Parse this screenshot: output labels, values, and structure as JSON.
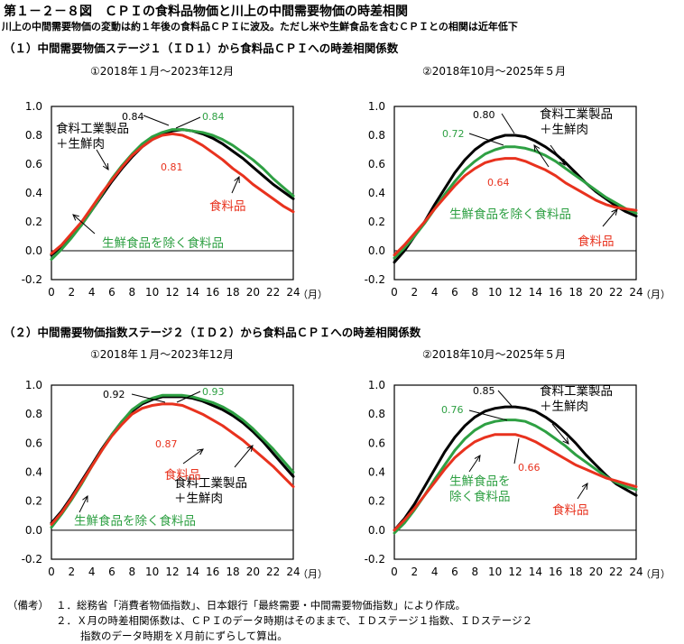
{
  "title": "第１－２－８図　ＣＰＩの食料品物価と川上の中間需要物価の時差相関",
  "subtitle": "川上の中間需要物価の変動は約１年後の食料品ＣＰＩに波及。ただし米や生鮮食品を含むＣＰＩとの相関は近年低下",
  "section1_title": "（１）中間需要物価ステージ１（ＩＤ１）から食料品ＣＰＩへの時差相関係数",
  "section2_title": "（２）中間需要物価指数ステージ２（ＩＤ２）から食料品ＣＰＩへの時差相関係数",
  "notes": {
    "label": "（備考）",
    "items": [
      "１．総務省「消費者物価指数」、日本銀行「最終需要・中間需要物価指数」により作成。",
      "２．Ｘ月の時差相関係数は、ＣＰＩのデータ時期はそのままで、ＩＤステージ１指数、ＩＤステージ２",
      "指数のデータ時期をＸ月前にずらして算出。"
    ]
  },
  "colors": {
    "black": "#000000",
    "green": "#2ea043",
    "red": "#e8321e"
  },
  "chart_data": [
    {
      "id": "c1",
      "type": "line",
      "title": "①2018年１月～2023年12月",
      "x": [
        0,
        1,
        2,
        3,
        4,
        5,
        6,
        7,
        8,
        9,
        10,
        11,
        12,
        13,
        14,
        15,
        16,
        17,
        18,
        19,
        20,
        21,
        22,
        23,
        24
      ],
      "xticks": [
        "0",
        "2",
        "4",
        "6",
        "8",
        "10",
        "12",
        "14",
        "16",
        "18",
        "20",
        "22",
        "24"
      ],
      "xunit": "（月）",
      "ylim": [
        -0.2,
        1.0
      ],
      "yticks": [
        "-0.2",
        "0.0",
        "0.2",
        "0.4",
        "0.6",
        "0.8",
        "1.0"
      ],
      "series": [
        {
          "name": "食料工業製品＋生鮮肉",
          "color": "black",
          "values": [
            -0.03,
            0.03,
            0.1,
            0.18,
            0.28,
            0.38,
            0.48,
            0.57,
            0.65,
            0.72,
            0.77,
            0.81,
            0.83,
            0.84,
            0.83,
            0.81,
            0.78,
            0.74,
            0.69,
            0.64,
            0.58,
            0.52,
            0.46,
            0.41,
            0.36
          ]
        },
        {
          "name": "生鮮食品を除く食料品",
          "color": "green",
          "values": [
            -0.06,
            0.01,
            0.09,
            0.18,
            0.28,
            0.39,
            0.5,
            0.59,
            0.67,
            0.74,
            0.79,
            0.82,
            0.84,
            0.84,
            0.83,
            0.82,
            0.8,
            0.77,
            0.73,
            0.68,
            0.63,
            0.57,
            0.5,
            0.44,
            0.38
          ]
        },
        {
          "name": "食料品",
          "color": "red",
          "values": [
            -0.02,
            0.04,
            0.12,
            0.2,
            0.3,
            0.4,
            0.49,
            0.58,
            0.66,
            0.72,
            0.77,
            0.8,
            0.81,
            0.8,
            0.77,
            0.73,
            0.68,
            0.63,
            0.57,
            0.52,
            0.46,
            0.41,
            0.36,
            0.31,
            0.27
          ]
        }
      ],
      "labels": {
        "black": "食料工業製品\n＋生鮮肉",
        "green": "生鮮食品を除く食料品",
        "red": "食料品"
      },
      "peaks": {
        "black": "0.84",
        "green": "0.84",
        "red": "0.81"
      }
    },
    {
      "id": "c2",
      "type": "line",
      "title": "②2018年10月～2025年５月",
      "x": [
        0,
        1,
        2,
        3,
        4,
        5,
        6,
        7,
        8,
        9,
        10,
        11,
        12,
        13,
        14,
        15,
        16,
        17,
        18,
        19,
        20,
        21,
        22,
        23,
        24
      ],
      "xticks": [
        "0",
        "2",
        "4",
        "6",
        "8",
        "10",
        "12",
        "14",
        "16",
        "18",
        "20",
        "22",
        "24"
      ],
      "xunit": "（月）",
      "ylim": [
        -0.2,
        1.0
      ],
      "yticks": [
        "-0.2",
        "0.0",
        "0.2",
        "0.4",
        "0.6",
        "0.8",
        "1.0"
      ],
      "series": [
        {
          "name": "食料工業製品＋生鮮肉",
          "color": "black",
          "values": [
            -0.08,
            0.0,
            0.1,
            0.2,
            0.32,
            0.43,
            0.54,
            0.63,
            0.7,
            0.75,
            0.78,
            0.8,
            0.8,
            0.79,
            0.76,
            0.72,
            0.67,
            0.61,
            0.54,
            0.47,
            0.41,
            0.36,
            0.31,
            0.27,
            0.24
          ]
        },
        {
          "name": "生鮮食品を除く食料品",
          "color": "green",
          "values": [
            -0.05,
            0.02,
            0.1,
            0.19,
            0.29,
            0.39,
            0.48,
            0.56,
            0.62,
            0.67,
            0.7,
            0.72,
            0.72,
            0.71,
            0.69,
            0.66,
            0.62,
            0.57,
            0.52,
            0.47,
            0.42,
            0.37,
            0.33,
            0.29,
            0.26
          ]
        },
        {
          "name": "食料品",
          "color": "red",
          "values": [
            -0.03,
            0.04,
            0.12,
            0.2,
            0.29,
            0.37,
            0.45,
            0.52,
            0.57,
            0.61,
            0.63,
            0.64,
            0.64,
            0.62,
            0.59,
            0.56,
            0.52,
            0.47,
            0.43,
            0.39,
            0.35,
            0.32,
            0.3,
            0.29,
            0.28
          ]
        }
      ],
      "labels": {
        "black": "食料工業製品\n＋生鮮肉",
        "green": "生鮮食品を除く食料品",
        "red": "食料品"
      },
      "peaks": {
        "black": "0.80",
        "green": "0.72",
        "red": "0.64"
      }
    },
    {
      "id": "c3",
      "type": "line",
      "title": "①2018年１月～2023年12月",
      "x": [
        0,
        1,
        2,
        3,
        4,
        5,
        6,
        7,
        8,
        9,
        10,
        11,
        12,
        13,
        14,
        15,
        16,
        17,
        18,
        19,
        20,
        21,
        22,
        23,
        24
      ],
      "xticks": [
        "0",
        "2",
        "4",
        "6",
        "8",
        "10",
        "12",
        "14",
        "16",
        "18",
        "20",
        "22",
        "24"
      ],
      "xunit": "（月）",
      "ylim": [
        -0.2,
        1.0
      ],
      "yticks": [
        "-0.2",
        "0.0",
        "0.2",
        "0.4",
        "0.6",
        "0.8",
        "1.0"
      ],
      "series": [
        {
          "name": "食料工業製品＋生鮮肉",
          "color": "black",
          "values": [
            0.05,
            0.13,
            0.23,
            0.34,
            0.45,
            0.56,
            0.66,
            0.75,
            0.82,
            0.87,
            0.9,
            0.92,
            0.92,
            0.92,
            0.91,
            0.89,
            0.86,
            0.83,
            0.79,
            0.74,
            0.68,
            0.61,
            0.53,
            0.45,
            0.37
          ]
        },
        {
          "name": "生鮮食品を除く食料品",
          "color": "green",
          "values": [
            0.02,
            0.11,
            0.21,
            0.32,
            0.44,
            0.55,
            0.66,
            0.75,
            0.83,
            0.88,
            0.91,
            0.93,
            0.93,
            0.93,
            0.92,
            0.9,
            0.88,
            0.85,
            0.81,
            0.76,
            0.7,
            0.63,
            0.56,
            0.48,
            0.4
          ]
        },
        {
          "name": "食料品",
          "color": "red",
          "values": [
            0.04,
            0.12,
            0.22,
            0.33,
            0.44,
            0.55,
            0.65,
            0.73,
            0.8,
            0.84,
            0.86,
            0.87,
            0.87,
            0.86,
            0.83,
            0.8,
            0.76,
            0.72,
            0.67,
            0.62,
            0.56,
            0.5,
            0.44,
            0.37,
            0.3
          ]
        }
      ],
      "labels": {
        "black": "食料工業製品\n＋生鮮肉",
        "green": "生鮮食品を除く食料品",
        "red": "食料品"
      },
      "peaks": {
        "black": "0.92",
        "green": "0.93",
        "red": "0.87"
      }
    },
    {
      "id": "c4",
      "type": "line",
      "title": "②2018年10月～2025年５月",
      "x": [
        0,
        1,
        2,
        3,
        4,
        5,
        6,
        7,
        8,
        9,
        10,
        11,
        12,
        13,
        14,
        15,
        16,
        17,
        18,
        19,
        20,
        21,
        22,
        23,
        24
      ],
      "xticks": [
        "0",
        "2",
        "4",
        "6",
        "8",
        "10",
        "12",
        "14",
        "16",
        "18",
        "20",
        "22",
        "24"
      ],
      "xunit": "（月）",
      "ylim": [
        -0.2,
        1.0
      ],
      "yticks": [
        "-0.2",
        "0.0",
        "0.2",
        "0.4",
        "0.6",
        "0.8",
        "1.0"
      ],
      "series": [
        {
          "name": "食料工業製品＋生鮮肉",
          "color": "black",
          "values": [
            0.0,
            0.08,
            0.18,
            0.3,
            0.42,
            0.54,
            0.64,
            0.72,
            0.78,
            0.82,
            0.84,
            0.85,
            0.85,
            0.84,
            0.82,
            0.78,
            0.73,
            0.67,
            0.6,
            0.52,
            0.45,
            0.38,
            0.32,
            0.28,
            0.24
          ]
        },
        {
          "name": "生鮮食品を除く食料品",
          "color": "green",
          "values": [
            -0.02,
            0.05,
            0.14,
            0.24,
            0.35,
            0.45,
            0.55,
            0.63,
            0.69,
            0.73,
            0.75,
            0.76,
            0.76,
            0.75,
            0.72,
            0.68,
            0.63,
            0.58,
            0.52,
            0.47,
            0.42,
            0.37,
            0.33,
            0.3,
            0.28
          ]
        },
        {
          "name": "食料品",
          "color": "red",
          "values": [
            0.0,
            0.07,
            0.15,
            0.24,
            0.33,
            0.42,
            0.5,
            0.56,
            0.61,
            0.64,
            0.66,
            0.66,
            0.66,
            0.64,
            0.61,
            0.57,
            0.53,
            0.49,
            0.45,
            0.42,
            0.39,
            0.36,
            0.34,
            0.32,
            0.3
          ]
        }
      ],
      "labels": {
        "black": "食料工業製品\n＋生鮮肉",
        "green": "生鮮食品を\n除く食料品",
        "red": "食料品"
      },
      "peaks": {
        "black": "0.85",
        "green": "0.76",
        "red": "0.66"
      }
    }
  ]
}
